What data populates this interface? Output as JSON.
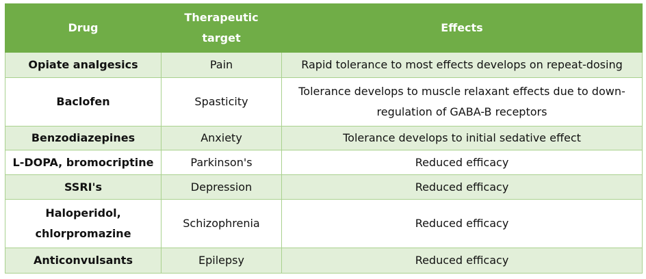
{
  "table": {
    "headers": {
      "drug": "Drug",
      "target_line1": "Therapeutic",
      "target_line2": "target",
      "effects": "Effects"
    },
    "rows": [
      {
        "drug": "Opiate analgesics",
        "target": "Pain",
        "effects": "Rapid tolerance to most effects develops on repeat-dosing"
      },
      {
        "drug": "Baclofen",
        "target": "Spasticity",
        "effects": "Tolerance develops to muscle relaxant effects due to down-regulation of GABA-B receptors"
      },
      {
        "drug": "Benzodiazepines",
        "target": "Anxiety",
        "effects": "Tolerance develops to initial sedative effect"
      },
      {
        "drug": "L-DOPA, bromocriptine",
        "target": "Parkinson's",
        "effects": "Reduced efficacy"
      },
      {
        "drug": "SSRI's",
        "target": "Depression",
        "effects": "Reduced efficacy"
      },
      {
        "drug": "Haloperidol, chlorpromazine",
        "target": "Schizophrenia",
        "effects": "Reduced efficacy"
      },
      {
        "drug": "Anticonvulsants",
        "target": "Epilepsy",
        "effects": "Reduced efficacy"
      }
    ]
  },
  "colors": {
    "header_bg": "#70ad47",
    "header_text": "#ffffff",
    "band_bg": "#e2efd9",
    "border": "#a9d18e"
  }
}
